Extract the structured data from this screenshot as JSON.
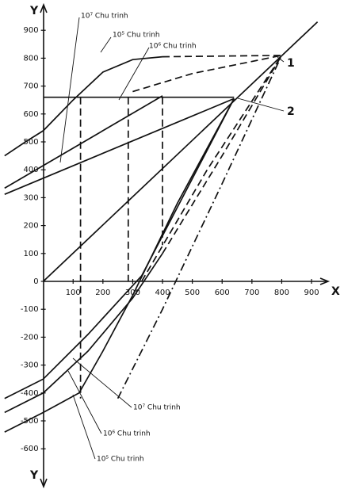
{
  "chart_data": {
    "type": "line",
    "color": "#111111",
    "xlim": [
      -140,
      960
    ],
    "ylim": [
      -650,
      950
    ],
    "xticks": [
      100,
      200,
      300,
      400,
      500,
      600,
      700,
      800,
      900
    ],
    "yticks": [
      -600,
      -500,
      -400,
      -300,
      -200,
      -100,
      0,
      100,
      200,
      300,
      400,
      500,
      600,
      700,
      800,
      900
    ],
    "x_axis_label": "X",
    "y_axis_label": "Y",
    "y_axis_label_bottom": "Y",
    "annotations": [
      "10⁷ Chu trinh",
      "10⁵ Chu trinh",
      "10⁶ Chu trinh",
      "1",
      "2",
      "10⁷ Chu trinh",
      "10⁶ Chu trinh",
      "10⁵ Chu trinh"
    ],
    "series": [
      {
        "style": "solid",
        "x": [
          0,
          920
        ],
        "values": [
          0,
          930
        ]
      },
      {
        "style": "solid",
        "x": [
          -130,
          -60,
          0,
          100,
          200,
          300,
          400
        ],
        "values": [
          450,
          500,
          540,
          650,
          750,
          795,
          805
        ]
      },
      {
        "style": "dashed",
        "x": [
          400,
          800
        ],
        "values": [
          805,
          810
        ]
      },
      {
        "style": "solid",
        "x": [
          -130,
          0,
          400
        ],
        "values": [
          334,
          415,
          665
        ]
      },
      {
        "style": "dashed",
        "x": [
          300,
          500,
          800
        ],
        "values": [
          680,
          745,
          810
        ]
      },
      {
        "style": "solid",
        "x": [
          -130,
          0,
          640
        ],
        "values": [
          312,
          370,
          655
        ]
      },
      {
        "style": "solid",
        "x": [
          0,
          640
        ],
        "values": [
          660,
          660
        ]
      },
      {
        "style": "dashed",
        "x": [
          125,
          125
        ],
        "values": [
          660,
          -420
        ]
      },
      {
        "style": "dashed",
        "x": [
          285,
          285
        ],
        "values": [
          660,
          0
        ]
      },
      {
        "style": "dashed",
        "x": [
          400,
          400
        ],
        "values": [
          660,
          130
        ]
      },
      {
        "style": "solid",
        "x": [
          -130,
          0,
          120,
          200,
          300,
          450,
          640
        ],
        "values": [
          -540,
          -470,
          -400,
          -250,
          -50,
          280,
          655
        ]
      },
      {
        "style": "solid",
        "x": [
          -130,
          0,
          150,
          300,
          400
        ],
        "values": [
          -470,
          -400,
          -250,
          -60,
          100
        ]
      },
      {
        "style": "dashed",
        "x": [
          400,
          600,
          800
        ],
        "values": [
          100,
          450,
          810
        ]
      },
      {
        "style": "solid",
        "x": [
          -130,
          0,
          150,
          330,
          640
        ],
        "values": [
          -420,
          -350,
          -190,
          20,
          655
        ]
      },
      {
        "style": "dashdot",
        "x": [
          250,
          400,
          600,
          800
        ],
        "values": [
          -420,
          -100,
          350,
          810
        ]
      },
      {
        "style": "dashed",
        "x": [
          330,
          550,
          800
        ],
        "values": [
          0,
          400,
          810
        ]
      }
    ]
  }
}
